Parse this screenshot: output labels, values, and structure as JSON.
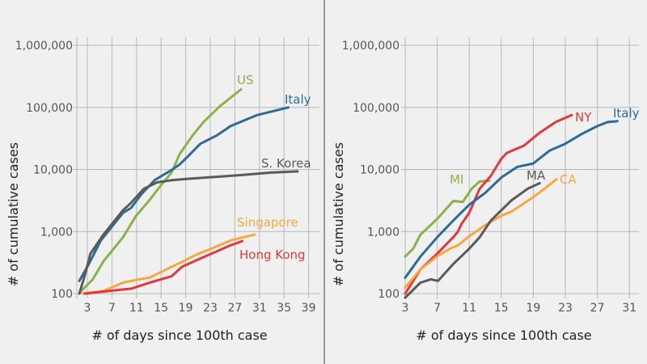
{
  "chart_data": [
    {
      "type": "line",
      "yscale": "log",
      "xlabel": "# of days since 100th case",
      "ylabel": "# of cumulative cases",
      "xticks": [
        3,
        7,
        11,
        15,
        19,
        23,
        27,
        31,
        35,
        39
      ],
      "yticks": [
        {
          "v": 100,
          "label": "100"
        },
        {
          "v": 1000,
          "label": "1,000"
        },
        {
          "v": 10000,
          "label": "10,000"
        },
        {
          "v": 100000,
          "label": "100,000"
        },
        {
          "v": 1000000,
          "label": "1,000,000"
        }
      ],
      "xlim": [
        1,
        41
      ],
      "ylim": [
        100,
        1000000
      ],
      "grid": true,
      "series": [
        {
          "name": "US",
          "color": "#8cb04a",
          "points": [
            [
              1.7,
              103
            ],
            [
              3.9,
              170
            ],
            [
              5.6,
              330
            ],
            [
              8.8,
              810
            ],
            [
              10.9,
              1770
            ],
            [
              13.1,
              3200
            ],
            [
              14.8,
              5300
            ],
            [
              16.7,
              8900
            ],
            [
              18,
              17600
            ],
            [
              20.1,
              35000
            ],
            [
              21.9,
              58000
            ],
            [
              24.6,
              105000
            ],
            [
              28,
              195000
            ]
          ]
        },
        {
          "name": "Italy",
          "color": "#2e6b96",
          "points": [
            [
              1.7,
              160
            ],
            [
              3,
              270
            ],
            [
              5.2,
              720
            ],
            [
              8.8,
              2000
            ],
            [
              10.1,
              2400
            ],
            [
              11.8,
              4000
            ],
            [
              14,
              6800
            ],
            [
              16.7,
              9800
            ],
            [
              18,
              12000
            ],
            [
              19.3,
              16000
            ],
            [
              21.4,
              26000
            ],
            [
              24,
              35000
            ],
            [
              26.3,
              50000
            ],
            [
              30.6,
              75000
            ],
            [
              35.7,
              100000
            ]
          ]
        },
        {
          "name": "S. Korea",
          "color": "#5a5a5a",
          "points": [
            [
              1.7,
              100
            ],
            [
              2.6,
              200
            ],
            [
              3.5,
              440
            ],
            [
              5.6,
              890
            ],
            [
              8.8,
              2200
            ],
            [
              10.1,
              2900
            ],
            [
              12.2,
              4900
            ],
            [
              14.4,
              6200
            ],
            [
              16.7,
              6700
            ],
            [
              19.7,
              7100
            ],
            [
              24,
              7600
            ],
            [
              28.5,
              8200
            ],
            [
              32.8,
              8900
            ],
            [
              37.2,
              9300
            ]
          ]
        },
        {
          "name": "Singapore",
          "color": "#f5a742",
          "points": [
            [
              2.2,
              100
            ],
            [
              5.6,
              110
            ],
            [
              8.8,
              150
            ],
            [
              11.4,
              170
            ],
            [
              13.1,
              180
            ],
            [
              15.3,
              230
            ],
            [
              18.8,
              340
            ],
            [
              20.6,
              420
            ],
            [
              23.2,
              530
            ],
            [
              26.3,
              720
            ],
            [
              30.2,
              890
            ]
          ]
        },
        {
          "name": "Hong Kong",
          "color": "#e0393e",
          "points": [
            [
              2.6,
              100
            ],
            [
              6.5,
              110
            ],
            [
              10.1,
              120
            ],
            [
              13.1,
              150
            ],
            [
              16.7,
              190
            ],
            [
              18.4,
              270
            ],
            [
              20.6,
              340
            ],
            [
              23.2,
              440
            ],
            [
              26.3,
              600
            ],
            [
              28.2,
              700
            ]
          ]
        }
      ]
    },
    {
      "type": "line",
      "yscale": "log",
      "xlabel": "# of days since 100th case",
      "ylabel": "# of cumulative cases",
      "xticks": [
        3,
        7,
        11,
        15,
        19,
        23,
        27,
        31
      ],
      "yticks": [
        {
          "v": 100,
          "label": "100"
        },
        {
          "v": 1000,
          "label": "1,000"
        },
        {
          "v": 10000,
          "label": "10,000"
        },
        {
          "v": 100000,
          "label": "100,000"
        },
        {
          "v": 1000000,
          "label": "1,000,000"
        }
      ],
      "xlim": [
        3,
        32
      ],
      "ylim": [
        100,
        1000000
      ],
      "grid": true,
      "series": [
        {
          "name": "MI",
          "color": "#8cb04a",
          "points": [
            [
              3,
              395
            ],
            [
              4,
              530
            ],
            [
              4.9,
              890
            ],
            [
              7,
              1600
            ],
            [
              9,
              3100
            ],
            [
              10.2,
              3000
            ],
            [
              11.3,
              4900
            ],
            [
              12.3,
              6400
            ],
            [
              13.5,
              6600
            ]
          ]
        },
        {
          "name": "NY",
          "color": "#e0393e",
          "points": [
            [
              3,
              100
            ],
            [
              4.9,
              245
            ],
            [
              7,
              440
            ],
            [
              9,
              810
            ],
            [
              9.6,
              1000
            ],
            [
              10,
              1300
            ],
            [
              11,
              2000
            ],
            [
              12.3,
              4900
            ],
            [
              13.7,
              7900
            ],
            [
              15,
              14800
            ],
            [
              15.7,
              18500
            ],
            [
              17.8,
              24000
            ],
            [
              19.8,
              39000
            ],
            [
              21.8,
              58000
            ],
            [
              23.8,
              75000
            ]
          ]
        },
        {
          "name": "Italy",
          "color": "#2e6b96",
          "points": [
            [
              3,
              180
            ],
            [
              4.9,
              395
            ],
            [
              7,
              810
            ],
            [
              9,
              1500
            ],
            [
              11,
              2700
            ],
            [
              13,
              4200
            ],
            [
              15,
              7400
            ],
            [
              17,
              11000
            ],
            [
              19,
              12500
            ],
            [
              21,
              20000
            ],
            [
              23,
              26000
            ],
            [
              25,
              37000
            ],
            [
              27,
              50000
            ],
            [
              28.3,
              58000
            ],
            [
              29.5,
              60000
            ]
          ]
        },
        {
          "name": "CA",
          "color": "#f5a742",
          "points": [
            [
              3,
              125
            ],
            [
              4.9,
              245
            ],
            [
              7,
              400
            ],
            [
              8.6,
              530
            ],
            [
              9.6,
              600
            ],
            [
              11,
              840
            ],
            [
              13,
              1270
            ],
            [
              15,
              1800
            ],
            [
              16.3,
              2100
            ],
            [
              19,
              3600
            ],
            [
              20.4,
              4900
            ],
            [
              21.9,
              7000
            ]
          ]
        },
        {
          "name": "MA",
          "color": "#5a5a5a",
          "points": [
            [
              3,
              86
            ],
            [
              4.9,
              150
            ],
            [
              6.2,
              170
            ],
            [
              7.1,
              160
            ],
            [
              9,
              300
            ],
            [
              11,
              530
            ],
            [
              12.3,
              810
            ],
            [
              13.7,
              1500
            ],
            [
              15,
              2200
            ],
            [
              16.3,
              3200
            ],
            [
              18.3,
              4900
            ],
            [
              19.8,
              6000
            ]
          ]
        }
      ]
    }
  ]
}
